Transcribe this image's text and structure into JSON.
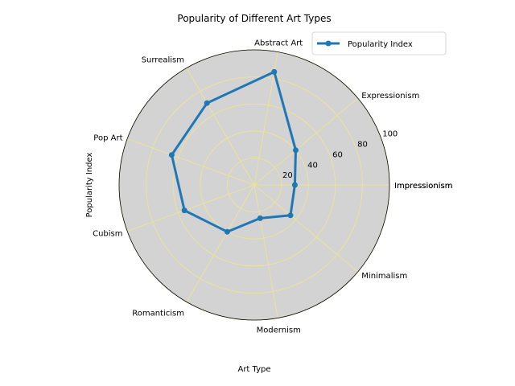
{
  "chart_data": {
    "type": "radar",
    "title": "Popularity of Different Art Types",
    "xlabel": "Art Type",
    "ylabel": "Popularity Index",
    "categories": [
      "Impressionism",
      "Expressionism",
      "Abstract Art",
      "Surrealism",
      "Pop Art",
      "Cubism",
      "Romanticism",
      "Modernism",
      "Minimalism"
    ],
    "closing_label": "Impressionism",
    "series": [
      {
        "name": "Popularity Index",
        "values": [
          30,
          40,
          85,
          70,
          65,
          55,
          40,
          25,
          35
        ],
        "color": "#1f77b4"
      }
    ],
    "r_ticks": [
      20,
      40,
      60,
      80,
      100
    ],
    "r_tick_labels": [
      "20",
      "40",
      "60",
      "80",
      "100"
    ],
    "rlim": [
      0,
      100
    ],
    "grid": true,
    "grid_color": "#f0e68c",
    "background_color": "#d3d3d3",
    "legend_position": "top-right"
  }
}
